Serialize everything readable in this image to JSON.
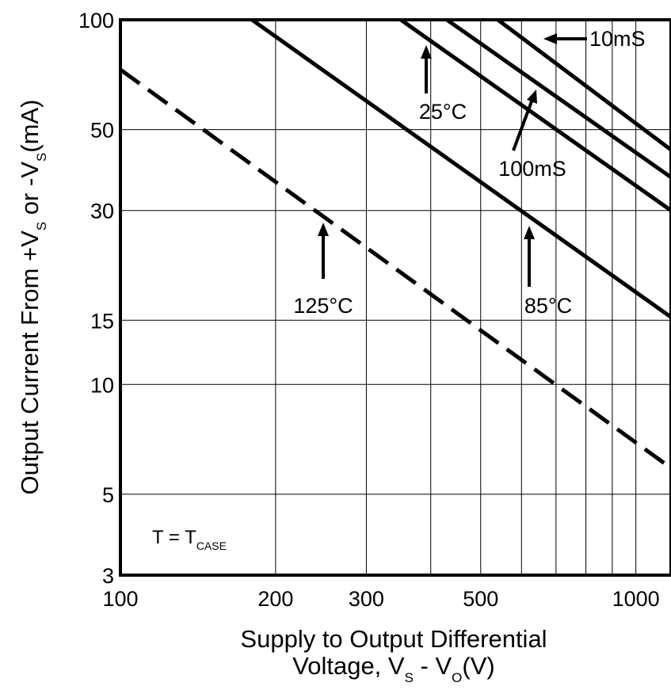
{
  "chart_data": {
    "type": "line",
    "xscale": "log",
    "yscale": "log",
    "xlim": [
      100,
      1170
    ],
    "ylim": [
      3,
      100
    ],
    "grid": true,
    "xticks": [
      100,
      200,
      300,
      500,
      1000
    ],
    "xtick_labels": [
      "100",
      "200",
      "300",
      "500",
      "1000"
    ],
    "yticks": [
      3,
      5,
      10,
      15,
      30,
      50,
      100
    ],
    "ytick_labels": [
      "3",
      "5",
      "10",
      "15",
      "30",
      "50",
      "100"
    ],
    "xlabel_line1": "Supply to Output Differential",
    "xlabel_line2": {
      "pre": "Voltage, V",
      "sub1": "S",
      "mid": " - V",
      "sub2": "O",
      "post": "(V)"
    },
    "ylabel": {
      "pre": "Output Current From +V",
      "sub1": "S",
      "mid": " or -V",
      "sub2": "S",
      "post": "(mA)"
    },
    "note": {
      "pre": "T = T",
      "sub": "CASE"
    },
    "series": [
      {
        "name": "10mS",
        "style": "solid",
        "x": [
          540,
          1170
        ],
        "y": [
          100,
          44
        ]
      },
      {
        "name": "100mS",
        "style": "solid",
        "x": [
          430,
          1170
        ],
        "y": [
          100,
          37
        ]
      },
      {
        "name": "25°C",
        "style": "solid",
        "x": [
          350,
          1170
        ],
        "y": [
          100,
          30
        ]
      },
      {
        "name": "85°C",
        "style": "solid",
        "x": [
          180,
          1170
        ],
        "y": [
          100,
          15.3
        ]
      },
      {
        "name": "125°C",
        "style": "dashed",
        "x": [
          100,
          1170
        ],
        "y": [
          73,
          5.9
        ]
      }
    ],
    "annotations": [
      {
        "text": "10mS",
        "target_series": "10mS"
      },
      {
        "text": "25°C",
        "target_series": "25°C"
      },
      {
        "text": "100mS",
        "target_series": "100mS"
      },
      {
        "text": "125°C",
        "target_series": "125°C"
      },
      {
        "text": "85°C",
        "target_series": "85°C"
      }
    ]
  }
}
